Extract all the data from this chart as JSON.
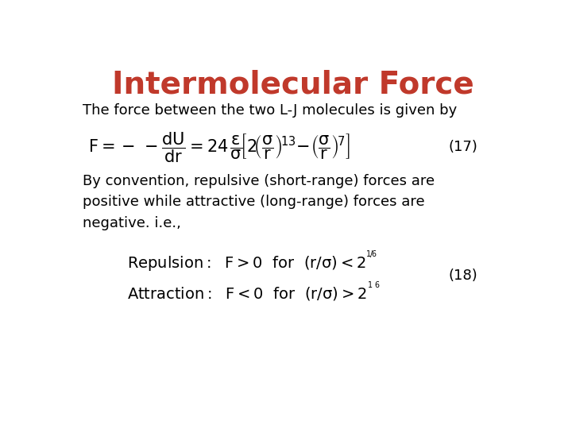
{
  "title": "Intermolecular Force",
  "title_color": "#C0392B",
  "title_fontsize": 28,
  "background_color": "#FFFFFF",
  "text_color": "#000000",
  "line1": "The force between the two L-J molecules is given by",
  "eq17_label": "(17)",
  "eq18_label": "(18)",
  "body_text": "By convention, repulsive (short-range) forces are\npositive while attractive (long-range) forces are\nnegative. i.e.,",
  "font_size_body": 13,
  "font_size_eq": 13,
  "font_size_title": 28
}
